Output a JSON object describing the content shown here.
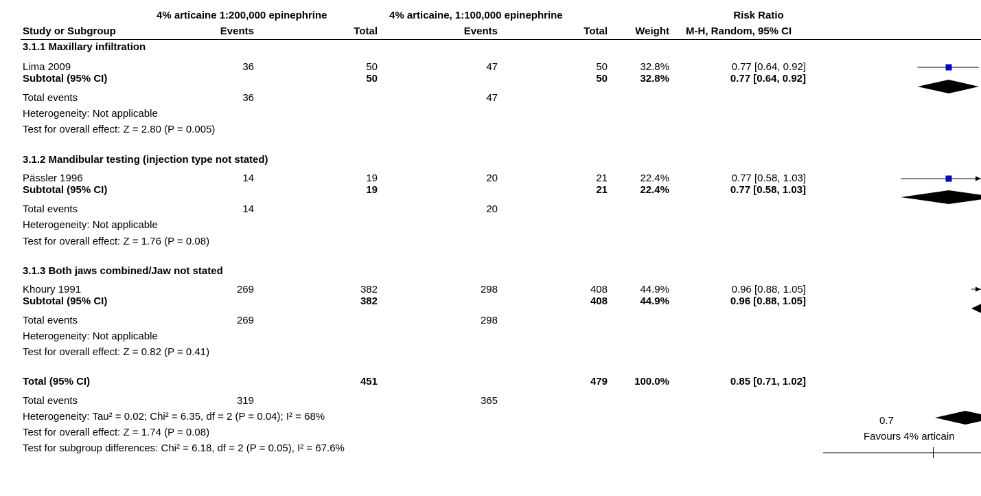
{
  "header": {
    "group1": "4% articaine 1:200,000 epinephrine",
    "group2": "4% articaine, 1:100,000 epinephrine",
    "rr_title": "Risk Ratio",
    "col_study": "Study or Subgroup",
    "col_events1": "Events",
    "col_total1": "Total",
    "col_events2": "Events",
    "col_total2": "Total",
    "col_weight": "Weight",
    "col_rr": "M-H, Random, 95% CI"
  },
  "subgroups": [
    {
      "title": "3.1.1 Maxillary infiltration",
      "study": {
        "name": "Lima 2009",
        "e1": "36",
        "n1": "50",
        "e2": "47",
        "n2": "50",
        "w": "32.8%",
        "rr": "0.77 [0.64, 0.92]"
      },
      "subtotal": {
        "label": "Subtotal (95% CI)",
        "n1": "50",
        "n2": "50",
        "w": "32.8%",
        "rr": "0.77 [0.64, 0.92]"
      },
      "events": {
        "label": "Total events",
        "e1": "36",
        "e2": "47"
      },
      "heterogeneity": "Heterogeneity: Not applicable",
      "overall": "Test for overall effect: Z = 2.80 (P = 0.005)"
    },
    {
      "title": "3.1.2 Mandibular testing (injection type not stated)",
      "study": {
        "name": "Pässler 1996",
        "e1": "14",
        "n1": "19",
        "e2": "20",
        "n2": "21",
        "w": "22.4%",
        "rr": "0.77 [0.58, 1.03]"
      },
      "subtotal": {
        "label": "Subtotal (95% CI)",
        "n1": "19",
        "n2": "21",
        "w": "22.4%",
        "rr": "0.77 [0.58, 1.03]"
      },
      "events": {
        "label": "Total events",
        "e1": "14",
        "e2": "20"
      },
      "heterogeneity": "Heterogeneity: Not applicable",
      "overall": "Test for overall effect: Z = 1.76 (P = 0.08)"
    },
    {
      "title": "3.1.3 Both jaws combined/Jaw not stated",
      "study": {
        "name": "Khoury 1991",
        "e1": "269",
        "n1": "382",
        "e2": "298",
        "n2": "408",
        "w": "44.9%",
        "rr": "0.96 [0.88, 1.05]"
      },
      "subtotal": {
        "label": "Subtotal (95% CI)",
        "n1": "382",
        "n2": "408",
        "w": "44.9%",
        "rr": "0.96 [0.88, 1.05]"
      },
      "events": {
        "label": "Total events",
        "e1": "269",
        "e2": "298"
      },
      "heterogeneity": "Heterogeneity: Not applicable",
      "overall": "Test for overall effect: Z = 0.82 (P = 0.41)"
    }
  ],
  "total": {
    "label": "Total (95% CI)",
    "n1": "451",
    "n2": "479",
    "w": "100.0%",
    "rr": "0.85 [0.71, 1.02]",
    "events_label": "Total events",
    "e1": "319",
    "e2": "365",
    "heterogeneity": "Heterogeneity: Tau² = 0.02; Chi² = 6.35, df = 2 (P = 0.04); I² = 68%",
    "overall": "Test for overall effect: Z = 1.74 (P = 0.08)",
    "subgroup_diff": "Test for subgroup differences: Chi² = 6.18, df = 2 (P = 0.05), I² = 67.6%"
  },
  "axis": {
    "tick_label": "0.7",
    "favours_left": "Favours 4% articain"
  },
  "chart_data": {
    "type": "scatter",
    "scale": "log",
    "x_visible_range": [
      0.52,
      1.1
    ],
    "ticks": [
      0.7
    ],
    "studies": [
      {
        "name": "Lima 2009",
        "rr": 0.77,
        "lo": 0.64,
        "hi": 0.92
      },
      {
        "name": "Pässler 1996",
        "rr": 0.77,
        "lo": 0.58,
        "hi": 1.03
      },
      {
        "name": "Khoury 1991",
        "rr": 0.96,
        "lo": 0.88,
        "hi": 1.05
      }
    ],
    "diamonds": [
      {
        "name": "Subtotal 3.1.1",
        "rr": 0.77,
        "lo": 0.64,
        "hi": 0.92
      },
      {
        "name": "Subtotal 3.1.2",
        "rr": 0.77,
        "lo": 0.58,
        "hi": 1.03
      },
      {
        "name": "Subtotal 3.1.3",
        "rr": 0.96,
        "lo": 0.88,
        "hi": 1.05
      },
      {
        "name": "Total",
        "rr": 0.85,
        "lo": 0.71,
        "hi": 1.02
      }
    ],
    "marker_color": "#0000cc"
  }
}
